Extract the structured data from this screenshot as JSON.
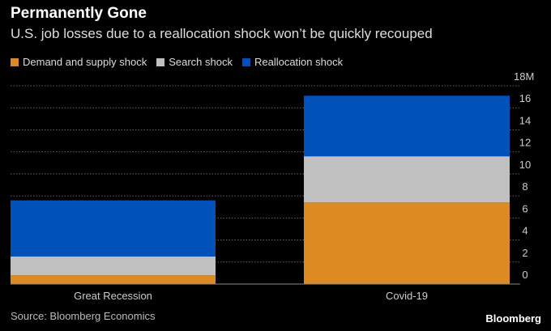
{
  "chart_data": {
    "type": "bar",
    "stacked": true,
    "title": "Permanently Gone",
    "subtitle": "U.S. job losses due to a reallocation shock won’t be quickly recouped",
    "categories": [
      "Great Recession",
      "Covid-19"
    ],
    "series": [
      {
        "name": "Demand and supply shock",
        "color": "#dc8a22",
        "values": [
          0.8,
          7.4
        ]
      },
      {
        "name": "Search shock",
        "color": "#c0c0c0",
        "values": [
          1.7,
          4.2
        ]
      },
      {
        "name": "Reallocation shock",
        "color": "#0051ba",
        "values": [
          5.1,
          5.5
        ]
      }
    ],
    "ylim": [
      0,
      18
    ],
    "yticks": [
      "0",
      "2",
      "4",
      "6",
      "8",
      "10",
      "12",
      "14",
      "16",
      "18M"
    ],
    "ytick_values": [
      0,
      2,
      4,
      6,
      8,
      10,
      12,
      14,
      16,
      18
    ],
    "xlabel": "",
    "ylabel": "",
    "grid": true,
    "legend_position": "top-left"
  },
  "footer": {
    "source": "Source: Bloomberg Economics",
    "logo": "Bloomberg"
  }
}
